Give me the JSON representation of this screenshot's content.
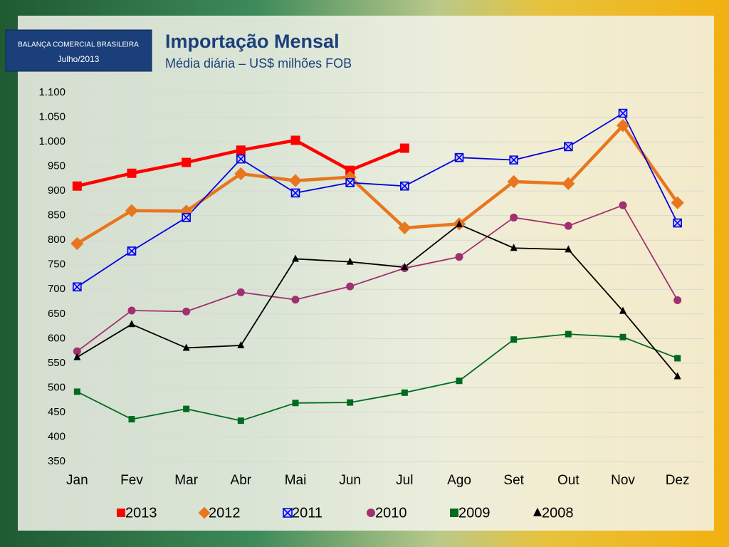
{
  "badge": {
    "line1": "BALANÇA COMERCIAL BRASILEIRA",
    "line2": "Julho/2013"
  },
  "chart_data": {
    "type": "line",
    "title": "Importação Mensal",
    "subtitle": "Média diária – US$ milhões FOB",
    "categories": [
      "Jan",
      "Fev",
      "Mar",
      "Abr",
      "Mai",
      "Jun",
      "Jul",
      "Ago",
      "Set",
      "Out",
      "Nov",
      "Dez"
    ],
    "ylim": [
      350,
      1100
    ],
    "yticks": [
      350,
      400,
      450,
      500,
      550,
      600,
      650,
      700,
      750,
      800,
      850,
      900,
      950,
      {
        "value": 1000,
        "label": "1.000"
      },
      {
        "value": 1050,
        "label": "1.050"
      },
      {
        "value": 1100,
        "label": "1.100"
      }
    ],
    "grid": true,
    "legend": "bottom",
    "series": [
      {
        "name": "2013",
        "color": "#ff0000",
        "marker": "square",
        "values": [
          910,
          936,
          958,
          983,
          1003,
          942,
          987,
          null,
          null,
          null,
          null,
          null
        ]
      },
      {
        "name": "2012",
        "color": "#e8761e",
        "marker": "diamond",
        "values": [
          793,
          860,
          859,
          935,
          921,
          928,
          825,
          833,
          919,
          915,
          1033,
          876
        ]
      },
      {
        "name": "2011",
        "color": "#0000e0",
        "marker": "xsquare",
        "values": [
          705,
          778,
          846,
          965,
          896,
          917,
          910,
          968,
          963,
          990,
          1058,
          835
        ]
      },
      {
        "name": "2010",
        "color": "#a03070",
        "marker": "circle",
        "values": [
          574,
          657,
          655,
          694,
          679,
          706,
          743,
          766,
          846,
          829,
          871,
          678
        ]
      },
      {
        "name": "2009",
        "color": "#006a1e",
        "marker": "square",
        "values": [
          492,
          436,
          457,
          433,
          469,
          470,
          490,
          514,
          598,
          609,
          603,
          560
        ]
      },
      {
        "name": "2008",
        "color": "#000000",
        "marker": "triangle",
        "values": [
          562,
          629,
          581,
          586,
          762,
          756,
          745,
          832,
          784,
          781,
          656,
          523
        ]
      }
    ]
  }
}
